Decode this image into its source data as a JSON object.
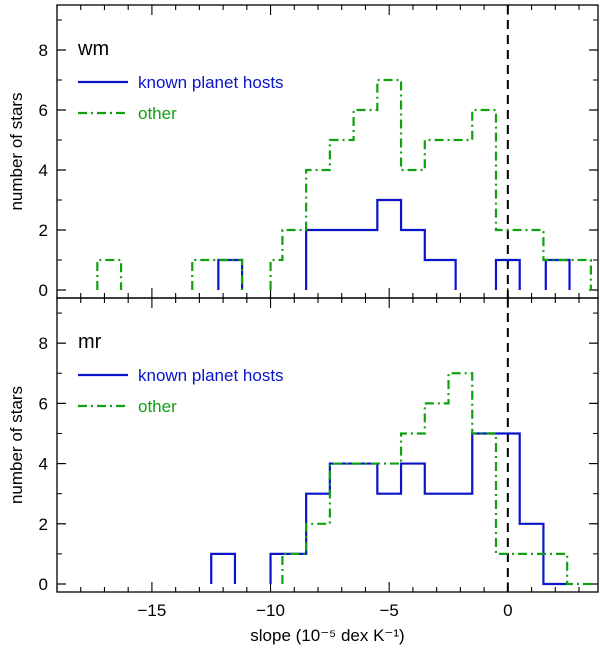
{
  "colors": {
    "axis": "#000000",
    "known_planet_hosts": "#0a14c8",
    "other": "#10a010",
    "zero_line": "#000000"
  },
  "chart_data": [
    {
      "type": "histogram",
      "panel_label": "wm",
      "ylabel": "number of stars",
      "ylim": [
        0,
        9.5
      ],
      "yticks": [
        0,
        2,
        4,
        6,
        8
      ],
      "xlim": [
        -19,
        3.8
      ],
      "xticks": [
        -15,
        -10,
        -5,
        0
      ],
      "vertical_line_x": 0,
      "legend_position": "top-left",
      "series": [
        {
          "name": "known planet hosts",
          "style": "solid",
          "color": "#0a14c8",
          "bins": [
            {
              "x0": -12.2,
              "x1": -11.2,
              "count": 1
            },
            {
              "x0": -8.5,
              "x1": -5.5,
              "count": 2
            },
            {
              "x0": -5.5,
              "x1": -4.5,
              "count": 3
            },
            {
              "x0": -4.5,
              "x1": -3.5,
              "count": 2
            },
            {
              "x0": -3.5,
              "x1": -2.2,
              "count": 1
            },
            {
              "x0": -0.5,
              "x1": 0.5,
              "count": 1
            },
            {
              "x0": 1.6,
              "x1": 2.6,
              "count": 1
            }
          ]
        },
        {
          "name": "other",
          "style": "dash-dot",
          "color": "#10a010",
          "bins": [
            {
              "x0": -17.3,
              "x1": -16.3,
              "count": 1
            },
            {
              "x0": -13.3,
              "x1": -11.2,
              "count": 1
            },
            {
              "x0": -10.0,
              "x1": -9.5,
              "count": 1
            },
            {
              "x0": -9.5,
              "x1": -8.5,
              "count": 2
            },
            {
              "x0": -8.5,
              "x1": -7.5,
              "count": 4
            },
            {
              "x0": -7.5,
              "x1": -6.5,
              "count": 5
            },
            {
              "x0": -6.5,
              "x1": -5.5,
              "count": 6
            },
            {
              "x0": -5.5,
              "x1": -4.5,
              "count": 7
            },
            {
              "x0": -4.5,
              "x1": -3.5,
              "count": 4
            },
            {
              "x0": -3.5,
              "x1": -2.5,
              "count": 5
            },
            {
              "x0": -2.5,
              "x1": -1.5,
              "count": 5
            },
            {
              "x0": -1.5,
              "x1": -0.5,
              "count": 6
            },
            {
              "x0": -0.5,
              "x1": 0.5,
              "count": 2
            },
            {
              "x0": 0.5,
              "x1": 1.5,
              "count": 2
            },
            {
              "x0": 1.5,
              "x1": 2.5,
              "count": 1
            },
            {
              "x0": 2.5,
              "x1": 3.5,
              "count": 1
            }
          ]
        }
      ]
    },
    {
      "type": "histogram",
      "panel_label": "mr",
      "ylabel": "number of stars",
      "xlabel": "slope (10⁻⁵ dex K⁻¹)",
      "ylim": [
        0,
        9.5
      ],
      "yticks": [
        0,
        2,
        4,
        6,
        8
      ],
      "xlim": [
        -19,
        3.8
      ],
      "xticks": [
        -15,
        -10,
        -5,
        0
      ],
      "vertical_line_x": 0,
      "legend_position": "top-left",
      "series": [
        {
          "name": "known planet hosts",
          "style": "solid",
          "color": "#0a14c8",
          "bins": [
            {
              "x0": -12.5,
              "x1": -11.5,
              "count": 1
            },
            {
              "x0": -10.0,
              "x1": -8.5,
              "count": 1
            },
            {
              "x0": -8.5,
              "x1": -7.5,
              "count": 3
            },
            {
              "x0": -7.5,
              "x1": -6.5,
              "count": 4
            },
            {
              "x0": -6.5,
              "x1": -5.5,
              "count": 4
            },
            {
              "x0": -5.5,
              "x1": -4.5,
              "count": 3
            },
            {
              "x0": -4.5,
              "x1": -3.5,
              "count": 4
            },
            {
              "x0": -3.5,
              "x1": -2.5,
              "count": 3
            },
            {
              "x0": -2.5,
              "x1": -1.5,
              "count": 3
            },
            {
              "x0": -1.5,
              "x1": 0.5,
              "count": 5
            },
            {
              "x0": 0.5,
              "x1": 1.5,
              "count": 2
            },
            {
              "x0": 1.5,
              "x1": 2.5,
              "count": 0
            }
          ]
        },
        {
          "name": "other",
          "style": "dash-dot",
          "color": "#10a010",
          "bins": [
            {
              "x0": -9.5,
              "x1": -8.5,
              "count": 1
            },
            {
              "x0": -8.5,
              "x1": -7.5,
              "count": 2
            },
            {
              "x0": -7.5,
              "x1": -4.5,
              "count": 4
            },
            {
              "x0": -4.5,
              "x1": -3.5,
              "count": 5
            },
            {
              "x0": -3.5,
              "x1": -2.5,
              "count": 6
            },
            {
              "x0": -2.5,
              "x1": -1.5,
              "count": 7
            },
            {
              "x0": -1.5,
              "x1": -0.5,
              "count": 5
            },
            {
              "x0": -0.5,
              "x1": 0.5,
              "count": 1
            },
            {
              "x0": 0.5,
              "x1": 1.5,
              "count": 1
            },
            {
              "x0": 1.5,
              "x1": 2.5,
              "count": 1
            },
            {
              "x0": 2.5,
              "x1": 3.5,
              "count": 0
            }
          ]
        }
      ]
    }
  ]
}
